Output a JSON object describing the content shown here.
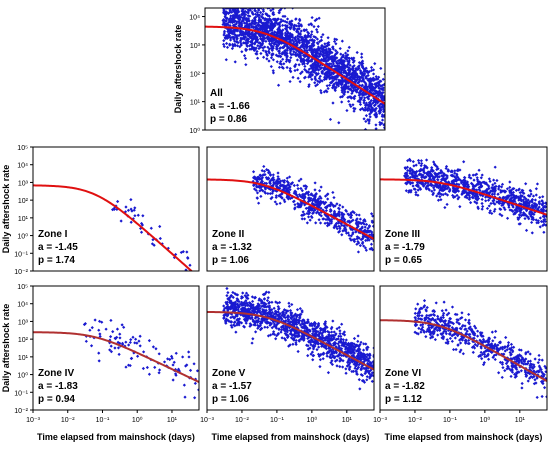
{
  "x_axis_label": "Time elapsed from mainshock (days)",
  "y_axis_label": "Daily aftershock rate",
  "colors": {
    "points": "#1a1ad0",
    "fit": "#e01010",
    "fit_dark": "#b03030",
    "frame": "#000000"
  },
  "chart_data": [
    {
      "type": "scatter",
      "panel": "All",
      "zone_label": "All",
      "a_text": "a = -1.66",
      "p_text": "p = 0.86",
      "a": -1.66,
      "p": 0.86,
      "xscale": "log",
      "yscale": "log",
      "xlim": [
        0.001,
        60
      ],
      "ylim": [
        1,
        20000
      ],
      "x_ticks": [],
      "y_ticks": [
        "10⁰",
        "10¹",
        "10²",
        "10³",
        "10⁴"
      ],
      "y_tick_values": [
        1,
        10,
        100,
        1000,
        10000
      ],
      "ylabel": "Daily aftershock rate",
      "fit": {
        "K": 4500,
        "c": 0.04,
        "p": 0.86
      },
      "scatter_cloud": {
        "start_x": 0.003,
        "width_dex": 0.45,
        "top_clip": 20000,
        "bottom_clip": 1,
        "n": 2200
      }
    },
    {
      "type": "scatter",
      "panel": "Zone I",
      "zone_label": "Zone I",
      "a_text": "a = -1.45",
      "p_text": "p = 1.74",
      "a": -1.45,
      "p": 1.74,
      "xscale": "log",
      "yscale": "log",
      "xlim": [
        0.001,
        60
      ],
      "ylim": [
        0.01,
        100000
      ],
      "x_ticks": [],
      "y_ticks": [
        "10⁻²",
        "10⁻¹",
        "10⁰",
        "10¹",
        "10²",
        "10³",
        "10⁴",
        "10⁵"
      ],
      "y_tick_values": [
        0.01,
        0.1,
        1,
        10,
        100,
        1000,
        10000,
        100000
      ],
      "ylabel": "Daily aftershock rate",
      "fit": {
        "K": 700,
        "c": 0.06,
        "p": 1.74
      },
      "scatter_cloud": {
        "start_x": 0.15,
        "width_dex": 0.35,
        "top_clip": 100000,
        "bottom_clip": 0.01,
        "n": 45
      }
    },
    {
      "type": "scatter",
      "panel": "Zone II",
      "zone_label": "Zone II",
      "a_text": "a = -1.32",
      "p_text": "p = 1.06",
      "a": -1.32,
      "p": 1.06,
      "xscale": "log",
      "yscale": "log",
      "xlim": [
        0.001,
        60
      ],
      "ylim": [
        0.01,
        100000
      ],
      "x_ticks": [],
      "y_ticks": [],
      "fit": {
        "K": 1500,
        "c": 0.04,
        "p": 1.06
      },
      "scatter_cloud": {
        "start_x": 0.02,
        "width_dex": 0.45,
        "top_clip": 100000,
        "bottom_clip": 0.01,
        "n": 650
      }
    },
    {
      "type": "scatter",
      "panel": "Zone III",
      "zone_label": "Zone III",
      "a_text": "a = -1.79",
      "p_text": "p = 0.65",
      "a": -1.79,
      "p": 0.65,
      "xscale": "log",
      "yscale": "log",
      "xlim": [
        0.001,
        60
      ],
      "ylim": [
        0.01,
        100000
      ],
      "x_ticks": [],
      "y_ticks": [],
      "fit": {
        "K": 1500,
        "c": 0.05,
        "p": 0.65
      },
      "scatter_cloud": {
        "start_x": 0.005,
        "width_dex": 0.45,
        "top_clip": 80000,
        "bottom_clip": 0.01,
        "n": 900
      }
    },
    {
      "type": "scatter",
      "panel": "Zone IV",
      "zone_label": "Zone IV",
      "a_text": "a = -1.83",
      "p_text": "p = 0.94",
      "a": -1.83,
      "p": 0.94,
      "xscale": "log",
      "yscale": "log",
      "xlim": [
        0.001,
        60
      ],
      "ylim": [
        0.01,
        100000
      ],
      "x_ticks": [
        "10⁻³",
        "10⁻²",
        "10⁻¹",
        "10⁰",
        "10¹"
      ],
      "x_tick_values": [
        0.001,
        0.01,
        0.1,
        1,
        10
      ],
      "y_ticks": [
        "10⁻²",
        "10⁻¹",
        "10⁰",
        "10¹",
        "10²",
        "10³",
        "10⁴",
        "10⁵"
      ],
      "y_tick_values": [
        0.01,
        0.1,
        1,
        10,
        100,
        1000,
        10000,
        100000
      ],
      "xlabel": "Time elapsed from mainshock (days)",
      "ylabel": "Daily aftershock rate",
      "fit": {
        "K": 250,
        "c": 0.06,
        "p": 0.94
      },
      "scatter_cloud": {
        "start_x": 0.03,
        "width_dex": 0.55,
        "top_clip": 100000,
        "bottom_clip": 0.01,
        "n": 110
      }
    },
    {
      "type": "scatter",
      "panel": "Zone V",
      "zone_label": "Zone V",
      "a_text": "a = -1.57",
      "p_text": "p = 1.06",
      "a": -1.57,
      "p": 1.06,
      "xscale": "log",
      "yscale": "log",
      "xlim": [
        0.001,
        60
      ],
      "ylim": [
        0.01,
        100000
      ],
      "x_ticks": [
        "10⁻³",
        "10⁻²",
        "10⁻¹",
        "10⁰",
        "10¹"
      ],
      "x_tick_values": [
        0.001,
        0.01,
        0.1,
        1,
        10
      ],
      "y_ticks": [],
      "xlabel": "Time elapsed from mainshock (days)",
      "fit": {
        "K": 3500,
        "c": 0.05,
        "p": 1.06
      },
      "scatter_cloud": {
        "start_x": 0.003,
        "width_dex": 0.5,
        "top_clip": 100000,
        "bottom_clip": 0.01,
        "n": 1300
      }
    },
    {
      "type": "scatter",
      "panel": "Zone VI",
      "zone_label": "Zone VI",
      "a_text": "a = -1.82",
      "p_text": "p = 1.12",
      "a": -1.82,
      "p": 1.12,
      "xscale": "log",
      "yscale": "log",
      "xlim": [
        0.001,
        60
      ],
      "ylim": [
        0.01,
        100000
      ],
      "x_ticks": [
        "10⁻³",
        "10⁻²",
        "10⁻¹",
        "10⁰",
        "10¹"
      ],
      "x_tick_values": [
        0.001,
        0.01,
        0.1,
        1,
        10
      ],
      "y_ticks": [],
      "xlabel": "Time elapsed from mainshock (days)",
      "fit": {
        "K": 1200,
        "c": 0.05,
        "p": 1.12
      },
      "scatter_cloud": {
        "start_x": 0.01,
        "width_dex": 0.45,
        "top_clip": 100000,
        "bottom_clip": 0.01,
        "n": 600
      }
    }
  ]
}
